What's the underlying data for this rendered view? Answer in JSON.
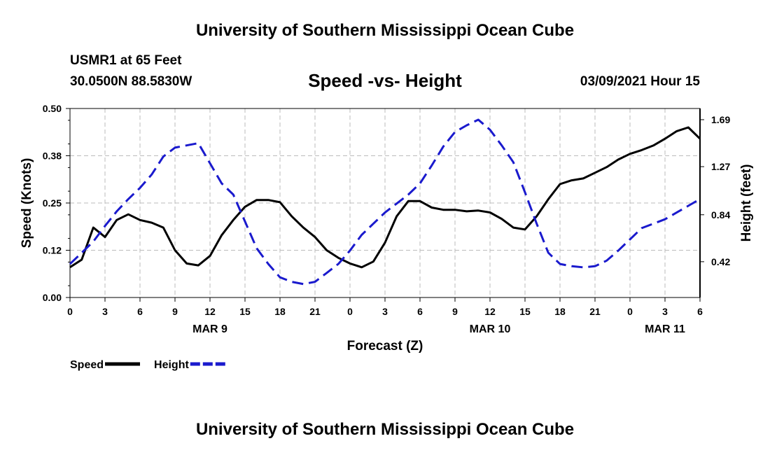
{
  "header": {
    "title_top": "University of Southern Mississippi Ocean Cube",
    "station": "USMR1 at 65 Feet",
    "coords": "30.0500N 88.5830W",
    "subtitle": "Speed -vs- Height",
    "timestamp": "03/09/2021 Hour 15",
    "title_bottom": "University of Southern Mississippi Ocean Cube"
  },
  "chart_data": {
    "type": "line",
    "title": "Speed -vs- Height",
    "xlabel": "Forecast (Z)",
    "ylabel": "Speed (Knots)",
    "y2label": "Height (feet)",
    "x_range": [
      0,
      54
    ],
    "ylim": [
      0,
      0.5
    ],
    "y2lim": [
      0.1,
      1.79
    ],
    "y_ticks": [
      "0.50",
      "0.38",
      "0.25",
      "0.12",
      "0.00"
    ],
    "y_tick_values": [
      0.5,
      0.375,
      0.25,
      0.125,
      0.0
    ],
    "y2_ticks": [
      "1.69",
      "1.27",
      "0.84",
      "0.42"
    ],
    "y2_tick_values": [
      1.69,
      1.27,
      0.84,
      0.42
    ],
    "x_ticks": [
      "0",
      "3",
      "6",
      "9",
      "12",
      "15",
      "18",
      "21",
      "0",
      "3",
      "6",
      "9",
      "12",
      "15",
      "18",
      "21",
      "0",
      "3",
      "6"
    ],
    "date_labels": [
      {
        "text": "MAR 9",
        "x": 12
      },
      {
        "text": "MAR 10",
        "x": 36
      },
      {
        "text": "MAR 11",
        "x": 51
      }
    ],
    "grid": true,
    "series": [
      {
        "name": "Speed",
        "axis": "left",
        "color": "#000000",
        "dash": "solid",
        "points": [
          [
            0,
            0.08
          ],
          [
            1,
            0.1
          ],
          [
            2,
            0.185
          ],
          [
            3,
            0.16
          ],
          [
            4,
            0.205
          ],
          [
            5,
            0.22
          ],
          [
            6,
            0.205
          ],
          [
            7,
            0.198
          ],
          [
            8,
            0.185
          ],
          [
            9,
            0.125
          ],
          [
            10,
            0.09
          ],
          [
            11,
            0.085
          ],
          [
            12,
            0.11
          ],
          [
            13,
            0.165
          ],
          [
            14,
            0.205
          ],
          [
            15,
            0.24
          ],
          [
            16,
            0.258
          ],
          [
            17,
            0.258
          ],
          [
            18,
            0.252
          ],
          [
            19,
            0.215
          ],
          [
            20,
            0.185
          ],
          [
            21,
            0.16
          ],
          [
            22,
            0.125
          ],
          [
            23,
            0.105
          ],
          [
            24,
            0.09
          ],
          [
            25,
            0.08
          ],
          [
            26,
            0.095
          ],
          [
            27,
            0.145
          ],
          [
            28,
            0.215
          ],
          [
            29,
            0.255
          ],
          [
            30,
            0.255
          ],
          [
            31,
            0.238
          ],
          [
            32,
            0.232
          ],
          [
            33,
            0.232
          ],
          [
            34,
            0.228
          ],
          [
            35,
            0.23
          ],
          [
            36,
            0.225
          ],
          [
            37,
            0.208
          ],
          [
            38,
            0.185
          ],
          [
            39,
            0.18
          ],
          [
            40,
            0.215
          ],
          [
            41,
            0.26
          ],
          [
            42,
            0.3
          ],
          [
            43,
            0.31
          ],
          [
            44,
            0.315
          ],
          [
            45,
            0.33
          ],
          [
            46,
            0.345
          ],
          [
            47,
            0.365
          ],
          [
            48,
            0.38
          ],
          [
            49,
            0.39
          ],
          [
            50,
            0.402
          ],
          [
            51,
            0.42
          ],
          [
            52,
            0.44
          ],
          [
            53,
            0.45
          ],
          [
            54,
            0.42
          ]
        ]
      },
      {
        "name": "Height",
        "axis": "right",
        "color": "#1a1acd",
        "dash": "dashed",
        "points": [
          [
            0,
            0.4
          ],
          [
            1,
            0.5
          ],
          [
            2,
            0.6
          ],
          [
            3,
            0.74
          ],
          [
            4,
            0.87
          ],
          [
            5,
            0.98
          ],
          [
            6,
            1.08
          ],
          [
            7,
            1.2
          ],
          [
            8,
            1.36
          ],
          [
            9,
            1.44
          ],
          [
            10,
            1.46
          ],
          [
            11,
            1.48
          ],
          [
            12,
            1.3
          ],
          [
            13,
            1.12
          ],
          [
            14,
            1.02
          ],
          [
            15,
            0.78
          ],
          [
            16,
            0.54
          ],
          [
            17,
            0.4
          ],
          [
            18,
            0.28
          ],
          [
            19,
            0.24
          ],
          [
            20,
            0.22
          ],
          [
            21,
            0.24
          ],
          [
            22,
            0.32
          ],
          [
            23,
            0.4
          ],
          [
            24,
            0.52
          ],
          [
            25,
            0.66
          ],
          [
            26,
            0.76
          ],
          [
            27,
            0.86
          ],
          [
            28,
            0.94
          ],
          [
            29,
            1.02
          ],
          [
            30,
            1.12
          ],
          [
            31,
            1.28
          ],
          [
            32,
            1.45
          ],
          [
            33,
            1.58
          ],
          [
            34,
            1.64
          ],
          [
            35,
            1.69
          ],
          [
            36,
            1.6
          ],
          [
            37,
            1.46
          ],
          [
            38,
            1.31
          ],
          [
            39,
            1.04
          ],
          [
            40,
            0.76
          ],
          [
            41,
            0.5
          ],
          [
            42,
            0.4
          ],
          [
            43,
            0.38
          ],
          [
            44,
            0.37
          ],
          [
            45,
            0.38
          ],
          [
            46,
            0.43
          ],
          [
            47,
            0.52
          ],
          [
            48,
            0.62
          ],
          [
            49,
            0.72
          ],
          [
            50,
            0.76
          ],
          [
            51,
            0.8
          ],
          [
            52,
            0.86
          ],
          [
            53,
            0.92
          ],
          [
            54,
            0.98
          ]
        ]
      }
    ],
    "legend": [
      {
        "label": "Speed",
        "color": "#000000",
        "dash": "solid"
      },
      {
        "label": "Height",
        "color": "#1a1acd",
        "dash": "dashed"
      }
    ]
  }
}
